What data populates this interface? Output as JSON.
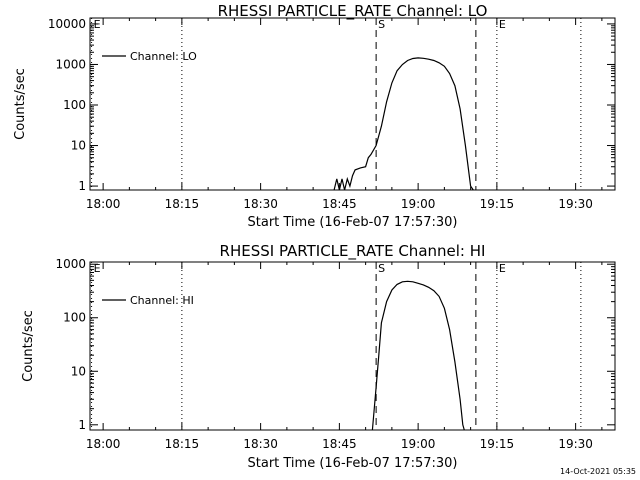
{
  "footer": {
    "timestamp": "14-Oct-2021 05:35"
  },
  "chart_data": [
    {
      "type": "line",
      "title": "RHESSI PARTICLE_RATE Channel: LO",
      "xlabel": "Start Time (16-Feb-07 17:57:30)",
      "ylabel": "Counts/sec",
      "y_scale": "log",
      "x_unit": "minutes after 18:00",
      "xlim": [
        -2.5,
        97.5
      ],
      "ylim": [
        0.8,
        14000
      ],
      "x_ticks": [
        "18:00",
        "18:15",
        "18:30",
        "18:45",
        "19:00",
        "19:15",
        "19:30"
      ],
      "y_ticks": [
        "1",
        "10",
        "100",
        "1000",
        "10000"
      ],
      "legend": {
        "label": "Channel: LO",
        "position": "top-left"
      },
      "markers": [
        {
          "label": "E",
          "x": -2.2,
          "style": "dotted"
        },
        {
          "label": "",
          "x": 15,
          "style": "dotted"
        },
        {
          "label": "S",
          "x": 52,
          "style": "dashed"
        },
        {
          "label": "",
          "x": 71,
          "style": "dashed"
        },
        {
          "label": "E",
          "x": 75,
          "style": "dotted"
        },
        {
          "label": "",
          "x": 91,
          "style": "dotted"
        }
      ],
      "series": [
        {
          "name": "Channel: LO",
          "points": [
            [
              44,
              0.8
            ],
            [
              44.5,
              1.5
            ],
            [
              45,
              0.8
            ],
            [
              45.5,
              1.5
            ],
            [
              46,
              0.8
            ],
            [
              46.5,
              1.5
            ],
            [
              47,
              1
            ],
            [
              47.5,
              1.8
            ],
            [
              48,
              2.5
            ],
            [
              49,
              2.8
            ],
            [
              50,
              3
            ],
            [
              50.5,
              5
            ],
            [
              51,
              6
            ],
            [
              52,
              10
            ],
            [
              53,
              30
            ],
            [
              54,
              120
            ],
            [
              55,
              350
            ],
            [
              56,
              700
            ],
            [
              57,
              1000
            ],
            [
              58,
              1250
            ],
            [
              59,
              1400
            ],
            [
              60,
              1450
            ],
            [
              61,
              1420
            ],
            [
              62,
              1350
            ],
            [
              63,
              1250
            ],
            [
              64,
              1100
            ],
            [
              65,
              900
            ],
            [
              66,
              600
            ],
            [
              67,
              300
            ],
            [
              68,
              80
            ],
            [
              69,
              10
            ],
            [
              70,
              1
            ],
            [
              70.5,
              0.8
            ]
          ]
        }
      ]
    },
    {
      "type": "line",
      "title": "RHESSI PARTICLE_RATE Channel: HI",
      "xlabel": "Start Time (16-Feb-07 17:57:30)",
      "ylabel": "Counts/sec",
      "y_scale": "log",
      "x_unit": "minutes after 18:00",
      "xlim": [
        -2.5,
        97.5
      ],
      "ylim": [
        0.8,
        1100
      ],
      "x_ticks": [
        "18:00",
        "18:15",
        "18:30",
        "18:45",
        "19:00",
        "19:15",
        "19:30"
      ],
      "y_ticks": [
        "1",
        "10",
        "100",
        "1000"
      ],
      "legend": {
        "label": "Channel: HI",
        "position": "top-left"
      },
      "markers": [
        {
          "label": "E",
          "x": -2.2,
          "style": "dotted"
        },
        {
          "label": "",
          "x": 15,
          "style": "dotted"
        },
        {
          "label": "S",
          "x": 52,
          "style": "dashed"
        },
        {
          "label": "",
          "x": 71,
          "style": "dashed"
        },
        {
          "label": "E",
          "x": 75,
          "style": "dotted"
        },
        {
          "label": "",
          "x": 91,
          "style": "dotted"
        }
      ],
      "series": [
        {
          "name": "Channel: HI",
          "points": [
            [
              51.3,
              0.8
            ],
            [
              52,
              5
            ],
            [
              52.5,
              20
            ],
            [
              53,
              80
            ],
            [
              54,
              200
            ],
            [
              55,
              330
            ],
            [
              56,
              420
            ],
            [
              57,
              470
            ],
            [
              58,
              480
            ],
            [
              59,
              470
            ],
            [
              60,
              440
            ],
            [
              61,
              410
            ],
            [
              62,
              370
            ],
            [
              63,
              320
            ],
            [
              64,
              250
            ],
            [
              65,
              150
            ],
            [
              66,
              60
            ],
            [
              67,
              15
            ],
            [
              68,
              3
            ],
            [
              68.5,
              1
            ],
            [
              68.8,
              0.8
            ]
          ]
        }
      ]
    }
  ]
}
